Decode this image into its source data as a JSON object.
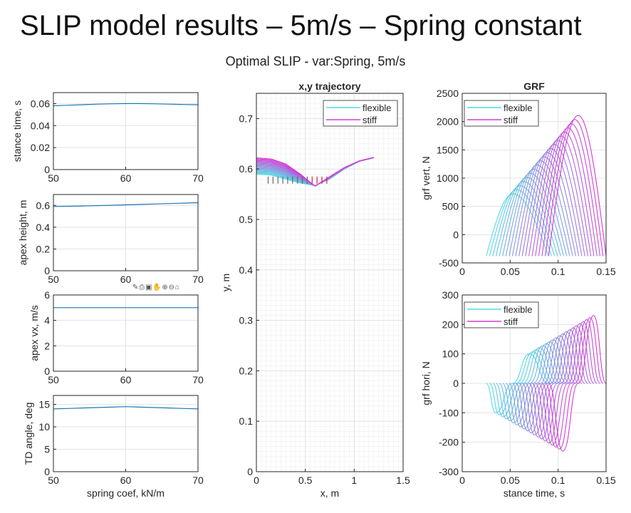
{
  "slide_title": "SLIP model results – 5m/s – Spring constant",
  "figure_title": "Optimal SLIP - var:Spring, 5m/s",
  "axes_toolbar_icons": [
    "annotate-icon",
    "save-icon",
    "brush-icon",
    "pan-icon",
    "zoom-in-icon",
    "zoom-out-icon",
    "home-icon"
  ],
  "colors": {
    "flexible": "#4fdbe6",
    "stiff": "#d63ad6",
    "series": "#1f77b4",
    "grid": "#e3e3e3"
  },
  "chart_data": [
    {
      "id": "stance",
      "type": "line",
      "title": "",
      "xlabel": "",
      "ylabel": "stance time, s",
      "xlim": [
        50,
        70
      ],
      "ylim": [
        0,
        0.07
      ],
      "xticks": [
        50,
        60,
        70
      ],
      "yticks": [
        0,
        0.02,
        0.04,
        0.06
      ],
      "ytick_labels": [
        "0",
        "0.02",
        "0.04",
        "0.06"
      ],
      "grid": true,
      "x": [
        50,
        52,
        54,
        56,
        58,
        60,
        62,
        64,
        66,
        68,
        70
      ],
      "series": [
        {
          "values": [
            0.058,
            0.0585,
            0.059,
            0.0595,
            0.0598,
            0.06,
            0.06,
            0.0598,
            0.0595,
            0.0592,
            0.059
          ]
        }
      ]
    },
    {
      "id": "apexh",
      "type": "line",
      "title": "",
      "xlabel": "",
      "ylabel": "apex height, m",
      "xlim": [
        50,
        70
      ],
      "ylim": [
        0,
        0.7
      ],
      "xticks": [
        50,
        60,
        70
      ],
      "yticks": [
        0,
        0.2,
        0.4,
        0.6
      ],
      "ytick_labels": [
        "0",
        "0.2",
        "0.4",
        "0.6"
      ],
      "grid": true,
      "x": [
        50,
        52,
        54,
        56,
        58,
        60,
        62,
        64,
        66,
        68,
        70
      ],
      "series": [
        {
          "values": [
            0.59,
            0.592,
            0.595,
            0.598,
            0.601,
            0.605,
            0.609,
            0.613,
            0.617,
            0.621,
            0.625
          ]
        }
      ]
    },
    {
      "id": "apexvx",
      "type": "line",
      "title": "",
      "xlabel": "",
      "ylabel": "apex vx, m/s",
      "xlim": [
        50,
        70
      ],
      "ylim": [
        0,
        6
      ],
      "xticks": [
        50,
        60,
        70
      ],
      "yticks": [
        0,
        2,
        4,
        6
      ],
      "ytick_labels": [
        "0",
        "2",
        "4",
        "6"
      ],
      "grid": true,
      "x": [
        50,
        70
      ],
      "series": [
        {
          "values": [
            5,
            5
          ]
        }
      ]
    },
    {
      "id": "tdangle",
      "type": "line",
      "title": "",
      "xlabel": "spring coef, kN/m",
      "ylabel": "TD angle, deg",
      "xlim": [
        50,
        70
      ],
      "ylim": [
        0,
        17
      ],
      "xticks": [
        50,
        60,
        70
      ],
      "yticks": [
        0,
        5,
        10,
        15
      ],
      "ytick_labels": [
        "0",
        "5",
        "10",
        "15"
      ],
      "grid": true,
      "x": [
        50,
        52,
        54,
        56,
        58,
        60,
        62,
        64,
        66,
        68,
        70
      ],
      "series": [
        {
          "values": [
            14,
            14.1,
            14.2,
            14.3,
            14.4,
            14.5,
            14.4,
            14.3,
            14.2,
            14.1,
            14
          ]
        }
      ]
    },
    {
      "id": "traj",
      "type": "line",
      "title": "x,y trajectory",
      "xlabel": "x, m",
      "ylabel": "y, m",
      "xlim": [
        0,
        1.5
      ],
      "ylim": [
        0,
        0.75
      ],
      "xticks": [
        0,
        0.5,
        1,
        1.5
      ],
      "yticks": [
        0,
        0.1,
        0.2,
        0.3,
        0.4,
        0.5,
        0.6,
        0.7
      ],
      "xtick_labels": [
        "0",
        "0.5",
        "1",
        "1.5"
      ],
      "ytick_labels": [
        "0",
        "0.1",
        "0.2",
        "0.3",
        "0.4",
        "0.5",
        "0.6",
        "0.7"
      ],
      "grid": true,
      "minor_grid": true,
      "legend": [
        "flexible",
        "stiff"
      ],
      "legend_position": "top-right",
      "curves": 20,
      "flexible_curve": {
        "x": [
          0,
          0.15,
          0.3,
          0.45,
          0.6,
          0.75,
          0.9,
          1.05,
          1.2
        ],
        "y": [
          0.59,
          0.588,
          0.58,
          0.572,
          0.567,
          0.58,
          0.6,
          0.615,
          0.622
        ]
      },
      "stiff_curve": {
        "x": [
          0,
          0.15,
          0.3,
          0.45,
          0.6,
          0.75,
          0.9,
          1.05,
          1.2
        ],
        "y": [
          0.622,
          0.62,
          0.61,
          0.59,
          0.566,
          0.585,
          0.603,
          0.616,
          0.623
        ]
      },
      "foot_markers_x": [
        0.12,
        0.17,
        0.22,
        0.27,
        0.32,
        0.37,
        0.42,
        0.47,
        0.52,
        0.57,
        0.62,
        0.67,
        0.72
      ]
    },
    {
      "id": "grfv",
      "type": "line",
      "title": "GRF",
      "xlabel": "",
      "ylabel": "grf vert, N",
      "xlim": [
        0,
        0.15
      ],
      "ylim": [
        -500,
        2500
      ],
      "xticks": [
        0,
        0.05,
        0.1,
        0.15
      ],
      "yticks": [
        -500,
        0,
        500,
        1000,
        1500,
        2000,
        2500
      ],
      "xtick_labels": [
        "0",
        "0.05",
        "0.1",
        "0.15"
      ],
      "ytick_labels": [
        "-500",
        "0",
        "500",
        "1000",
        "1500",
        "2000",
        "2500"
      ],
      "grid": true,
      "legend": [
        "flexible",
        "stiff"
      ],
      "legend_position": "top-left",
      "curves": 20,
      "first_curve": {
        "start": 0.025,
        "peak_time": 0.053,
        "peak": 720,
        "end": 0.09
      },
      "last_curve": {
        "start": 0.09,
        "peak_time": 0.121,
        "peak": 2110,
        "end": 0.15
      },
      "baseline_value": -380
    },
    {
      "id": "grfh",
      "type": "line",
      "title": "",
      "xlabel": "stance time, s",
      "ylabel": "grf hori, N",
      "xlim": [
        0,
        0.15
      ],
      "ylim": [
        -300,
        300
      ],
      "xticks": [
        0,
        0.05,
        0.1,
        0.15
      ],
      "yticks": [
        -300,
        -200,
        -100,
        0,
        100,
        200,
        300
      ],
      "xtick_labels": [
        "0",
        "0.05",
        "0.1",
        "0.15"
      ],
      "ytick_labels": [
        "-300",
        "-200",
        "-100",
        "0",
        "100",
        "200",
        "300"
      ],
      "grid": true,
      "legend": [
        "flexible",
        "stiff"
      ],
      "legend_position": "top-left",
      "curves": 20,
      "first_curve": {
        "start": 0.025,
        "min_time": 0.035,
        "min": -100,
        "max_time": 0.07,
        "max": 100,
        "end": 0.09
      },
      "last_curve": {
        "start": 0.09,
        "min_time": 0.105,
        "min": -230,
        "max_time": 0.137,
        "max": 230,
        "end": 0.15
      }
    }
  ]
}
